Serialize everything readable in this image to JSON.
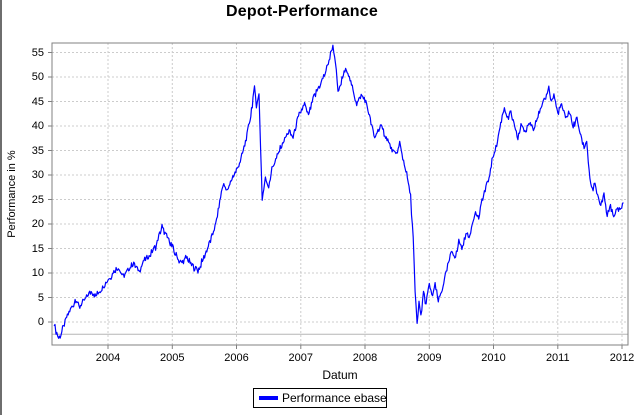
{
  "chart_data": {
    "type": "line",
    "title": "Depot-Performance",
    "xlabel": "Datum",
    "ylabel": "Performance in %",
    "x_ticks": [
      2004,
      2005,
      2006,
      2007,
      2008,
      2009,
      2010,
      2011,
      2012
    ],
    "y_ticks": [
      0,
      5,
      10,
      15,
      20,
      25,
      30,
      35,
      40,
      45,
      50,
      55
    ],
    "xlim": [
      2003.128,
      2012.093
    ],
    "ylim": [
      -4.69,
      56.94
    ],
    "grid": "dashed",
    "baseline_value": -2.5,
    "colors": {
      "line": "#0000ff",
      "grid": "#cccccc",
      "plot_border": "#808080",
      "baseline": "#b5b5b5",
      "tick_mark": "#808080",
      "legend_border": "#000000",
      "background": "#ffffff",
      "window_edge": "#6e6e6e"
    },
    "legend": {
      "position": "bottom",
      "entries": [
        {
          "label": "Performance ebase",
          "color": "#0000ff"
        }
      ]
    },
    "series": [
      {
        "name": "Performance ebase",
        "color": "#0000ff",
        "points": [
          [
            2003.16,
            0
          ],
          [
            2003.19,
            -1.8
          ],
          [
            2003.23,
            -3.4
          ],
          [
            2003.28,
            -2.0
          ],
          [
            2003.32,
            -0.3
          ],
          [
            2003.38,
            1.6
          ],
          [
            2003.44,
            3.1
          ],
          [
            2003.5,
            4.7
          ],
          [
            2003.56,
            3.0
          ],
          [
            2003.62,
            4.3
          ],
          [
            2003.69,
            5.6
          ],
          [
            2003.75,
            6.3
          ],
          [
            2003.81,
            5.2
          ],
          [
            2003.88,
            6.6
          ],
          [
            2003.94,
            7.6
          ],
          [
            2004.0,
            8.5
          ],
          [
            2004.08,
            10.1
          ],
          [
            2004.16,
            11.2
          ],
          [
            2004.24,
            9.2
          ],
          [
            2004.32,
            10.6
          ],
          [
            2004.4,
            12.0
          ],
          [
            2004.48,
            10.4
          ],
          [
            2004.56,
            12.4
          ],
          [
            2004.65,
            13.6
          ],
          [
            2004.74,
            15.4
          ],
          [
            2004.84,
            19.4
          ],
          [
            2004.91,
            17.6
          ],
          [
            2004.97,
            16.2
          ],
          [
            2005.05,
            13.8
          ],
          [
            2005.14,
            11.9
          ],
          [
            2005.22,
            13.2
          ],
          [
            2005.3,
            11.6
          ],
          [
            2005.4,
            10.4
          ],
          [
            2005.48,
            12.8
          ],
          [
            2005.56,
            15.4
          ],
          [
            2005.63,
            17.9
          ],
          [
            2005.69,
            20.8
          ],
          [
            2005.74,
            24.6
          ],
          [
            2005.79,
            28.2
          ],
          [
            2005.86,
            26.7
          ],
          [
            2005.93,
            29.3
          ],
          [
            2006.0,
            31.0
          ],
          [
            2006.07,
            33.4
          ],
          [
            2006.14,
            36.8
          ],
          [
            2006.21,
            41.2
          ],
          [
            2006.28,
            47.7
          ],
          [
            2006.31,
            44.2
          ],
          [
            2006.35,
            46.4
          ],
          [
            2006.4,
            25.2
          ],
          [
            2006.45,
            29.4
          ],
          [
            2006.5,
            27.6
          ],
          [
            2006.55,
            31.3
          ],
          [
            2006.61,
            33.0
          ],
          [
            2006.68,
            35.4
          ],
          [
            2006.75,
            37.4
          ],
          [
            2006.82,
            38.9
          ],
          [
            2006.88,
            37.6
          ],
          [
            2006.94,
            40.8
          ],
          [
            2007.0,
            43.0
          ],
          [
            2007.06,
            44.4
          ],
          [
            2007.12,
            42.1
          ],
          [
            2007.19,
            45.4
          ],
          [
            2007.28,
            47.9
          ],
          [
            2007.37,
            50.4
          ],
          [
            2007.44,
            53.4
          ],
          [
            2007.5,
            56.4
          ],
          [
            2007.54,
            53.2
          ],
          [
            2007.58,
            46.6
          ],
          [
            2007.64,
            49.4
          ],
          [
            2007.71,
            51.9
          ],
          [
            2007.79,
            48.4
          ],
          [
            2007.87,
            44.6
          ],
          [
            2007.94,
            46.4
          ],
          [
            2008.0,
            45.4
          ],
          [
            2008.07,
            42.0
          ],
          [
            2008.15,
            37.6
          ],
          [
            2008.24,
            39.9
          ],
          [
            2008.32,
            38.0
          ],
          [
            2008.41,
            35.4
          ],
          [
            2008.48,
            34.0
          ],
          [
            2008.54,
            36.4
          ],
          [
            2008.6,
            32.9
          ],
          [
            2008.66,
            29.6
          ],
          [
            2008.71,
            25.4
          ],
          [
            2008.75,
            17.0
          ],
          [
            2008.78,
            6.0
          ],
          [
            2008.81,
            -0.6
          ],
          [
            2008.84,
            3.8
          ],
          [
            2008.87,
            1.2
          ],
          [
            2008.91,
            6.1
          ],
          [
            2008.95,
            3.6
          ],
          [
            2009.0,
            7.9
          ],
          [
            2009.04,
            5.3
          ],
          [
            2009.09,
            7.4
          ],
          [
            2009.14,
            4.3
          ],
          [
            2009.19,
            6.1
          ],
          [
            2009.25,
            9.4
          ],
          [
            2009.3,
            12.1
          ],
          [
            2009.35,
            14.4
          ],
          [
            2009.41,
            13.1
          ],
          [
            2009.46,
            16.4
          ],
          [
            2009.52,
            15.1
          ],
          [
            2009.57,
            18.4
          ],
          [
            2009.62,
            17.1
          ],
          [
            2009.67,
            20.3
          ],
          [
            2009.72,
            22.4
          ],
          [
            2009.77,
            21.1
          ],
          [
            2009.82,
            24.9
          ],
          [
            2009.87,
            26.9
          ],
          [
            2009.93,
            29.4
          ],
          [
            2010.0,
            34.4
          ],
          [
            2010.05,
            35.9
          ],
          [
            2010.1,
            39.9
          ],
          [
            2010.17,
            44.0
          ],
          [
            2010.22,
            41.4
          ],
          [
            2010.27,
            42.9
          ],
          [
            2010.33,
            39.4
          ],
          [
            2010.38,
            37.6
          ],
          [
            2010.44,
            40.4
          ],
          [
            2010.5,
            38.6
          ],
          [
            2010.56,
            40.9
          ],
          [
            2010.62,
            39.4
          ],
          [
            2010.68,
            41.9
          ],
          [
            2010.74,
            43.4
          ],
          [
            2010.8,
            45.4
          ],
          [
            2010.86,
            47.9
          ],
          [
            2010.9,
            44.9
          ],
          [
            2010.94,
            46.4
          ],
          [
            2011.0,
            42.6
          ],
          [
            2011.06,
            44.4
          ],
          [
            2011.12,
            41.6
          ],
          [
            2011.18,
            42.9
          ],
          [
            2011.24,
            39.9
          ],
          [
            2011.3,
            41.4
          ],
          [
            2011.36,
            37.9
          ],
          [
            2011.41,
            35.6
          ],
          [
            2011.45,
            36.9
          ],
          [
            2011.5,
            29.1
          ],
          [
            2011.55,
            26.6
          ],
          [
            2011.58,
            28.4
          ],
          [
            2011.62,
            25.6
          ],
          [
            2011.67,
            23.6
          ],
          [
            2011.72,
            25.9
          ],
          [
            2011.77,
            21.6
          ],
          [
            2011.82,
            23.9
          ],
          [
            2011.87,
            21.1
          ],
          [
            2011.92,
            23.4
          ],
          [
            2011.97,
            22.9
          ],
          [
            2012.02,
            24.4
          ]
        ]
      }
    ]
  }
}
